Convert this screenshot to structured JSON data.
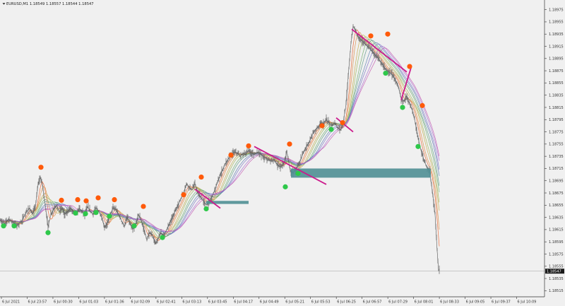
{
  "chart_data": {
    "type": "line",
    "title": "EURUSD,M1  1.18549 1.18557 1.18544 1.18547",
    "symbol_label": "EURUSD,M1",
    "ohlc": "1.18549 1.18557 1.18544 1.18547",
    "current_price": 1.18547,
    "current_price_label": "1.18547",
    "ylim": [
      1.18505,
      1.18985
    ],
    "y_ticks": [
      1.18975,
      1.18955,
      1.18935,
      1.18915,
      1.18895,
      1.18875,
      1.18855,
      1.18835,
      1.18815,
      1.18795,
      1.18775,
      1.18755,
      1.18735,
      1.18715,
      1.18695,
      1.18675,
      1.18655,
      1.18635,
      1.18615,
      1.18595,
      1.18575,
      1.18555,
      1.18535,
      1.18515
    ],
    "x_ticks": [
      "6 Jul 2021",
      "6 Jul 23:57",
      "6 Jul 00:30",
      "6 Jul 01:03",
      "6 Jul 01:36",
      "6 Jul 02:09",
      "6 Jul 02:41",
      "6 Jul 03:13",
      "6 Jul 03:45",
      "6 Jul 04:17",
      "6 Jul 04:49",
      "6 Jul 05:21",
      "6 Jul 05:53",
      "6 Jul 06:25",
      "6 Jul 06:57",
      "6 Jul 07:29",
      "6 Jul 08:01",
      "6 Jul 08:33",
      "6 Jul 09:05",
      "6 Jul 09:37",
      "6 Jul 10:09"
    ],
    "price_path": [
      [
        0,
        1.1863
      ],
      [
        7,
        1.18625
      ],
      [
        12,
        1.18632
      ],
      [
        18,
        1.18628
      ],
      [
        24,
        1.18622
      ],
      [
        30,
        1.18628
      ],
      [
        35,
        1.18638
      ],
      [
        38,
        1.18645
      ],
      [
        42,
        1.1865
      ],
      [
        46,
        1.1864
      ],
      [
        50,
        1.18652
      ],
      [
        54,
        1.1869
      ],
      [
        57,
        1.187
      ],
      [
        60,
        1.1869
      ],
      [
        64,
        1.18655
      ],
      [
        68,
        1.1862
      ],
      [
        72,
        1.1864
      ],
      [
        76,
        1.18648
      ],
      [
        80,
        1.18655
      ],
      [
        84,
        1.18645
      ],
      [
        88,
        1.1865
      ],
      [
        92,
        1.1864
      ],
      [
        96,
        1.18645
      ],
      [
        100,
        1.1865
      ],
      [
        104,
        1.18645
      ],
      [
        108,
        1.1864
      ],
      [
        112,
        1.1865
      ],
      [
        116,
        1.18645
      ],
      [
        120,
        1.1864
      ],
      [
        124,
        1.18652
      ],
      [
        128,
        1.18645
      ],
      [
        132,
        1.1864
      ],
      [
        136,
        1.1865
      ],
      [
        140,
        1.18645
      ],
      [
        144,
        1.18635
      ],
      [
        148,
        1.18618
      ],
      [
        152,
        1.18625
      ],
      [
        156,
        1.1864
      ],
      [
        160,
        1.1865
      ],
      [
        164,
        1.18648
      ],
      [
        168,
        1.1864
      ],
      [
        172,
        1.1863
      ],
      [
        176,
        1.1862
      ],
      [
        180,
        1.18635
      ],
      [
        184,
        1.18625
      ],
      [
        188,
        1.18615
      ],
      [
        192,
        1.18622
      ],
      [
        196,
        1.1864
      ],
      [
        200,
        1.1863
      ],
      [
        204,
        1.18615
      ],
      [
        208,
        1.18598
      ],
      [
        212,
        1.1861
      ],
      [
        216,
        1.18605
      ],
      [
        220,
        1.18592
      ],
      [
        224,
        1.186
      ],
      [
        228,
        1.1861
      ],
      [
        232,
        1.18605
      ],
      [
        236,
        1.18615
      ],
      [
        240,
        1.18625
      ],
      [
        244,
        1.18635
      ],
      [
        248,
        1.18645
      ],
      [
        252,
        1.18655
      ],
      [
        256,
        1.18665
      ],
      [
        260,
        1.18675
      ],
      [
        264,
        1.1869
      ],
      [
        268,
        1.18685
      ],
      [
        272,
        1.1868
      ],
      [
        276,
        1.1869
      ],
      [
        280,
        1.18675
      ],
      [
        284,
        1.18668
      ],
      [
        288,
        1.18662
      ],
      [
        292,
        1.18655
      ],
      [
        296,
        1.1866
      ],
      [
        300,
        1.18668
      ],
      [
        304,
        1.1868
      ],
      [
        308,
        1.18692
      ],
      [
        312,
        1.18705
      ],
      [
        316,
        1.18715
      ],
      [
        320,
        1.18725
      ],
      [
        324,
        1.18732
      ],
      [
        328,
        1.18738
      ],
      [
        332,
        1.18742
      ],
      [
        336,
        1.1874
      ],
      [
        340,
        1.18735
      ],
      [
        344,
        1.1874
      ],
      [
        348,
        1.18738
      ],
      [
        352,
        1.18745
      ],
      [
        356,
        1.1874
      ],
      [
        360,
        1.18738
      ],
      [
        364,
        1.18742
      ],
      [
        368,
        1.1874
      ],
      [
        372,
        1.18735
      ],
      [
        376,
        1.18732
      ],
      [
        380,
        1.1873
      ],
      [
        384,
        1.18728
      ],
      [
        388,
        1.1873
      ],
      [
        392,
        1.18722
      ],
      [
        396,
        1.18718
      ],
      [
        400,
        1.1872
      ],
      [
        404,
        1.18728
      ],
      [
        406,
        1.18745
      ],
      [
        408,
        1.1873
      ],
      [
        411,
        1.18712
      ],
      [
        414,
        1.18708
      ],
      [
        418,
        1.18712
      ],
      [
        422,
        1.1872
      ],
      [
        426,
        1.1873
      ],
      [
        430,
        1.18742
      ],
      [
        434,
        1.18752
      ],
      [
        438,
        1.18758
      ],
      [
        442,
        1.1877
      ],
      [
        446,
        1.18778
      ],
      [
        450,
        1.18782
      ],
      [
        454,
        1.1879
      ],
      [
        458,
        1.18788
      ],
      [
        462,
        1.18795
      ],
      [
        466,
        1.1879
      ],
      [
        470,
        1.18785
      ],
      [
        474,
        1.1879
      ],
      [
        478,
        1.18782
      ],
      [
        482,
        1.18778
      ],
      [
        486,
        1.1879
      ],
      [
        490,
        1.1882
      ],
      [
        494,
        1.1888
      ],
      [
        497,
        1.1892
      ],
      [
        500,
        1.18948
      ],
      [
        504,
        1.1894
      ],
      [
        508,
        1.1893
      ],
      [
        512,
        1.18925
      ],
      [
        516,
        1.1892
      ],
      [
        520,
        1.18915
      ],
      [
        524,
        1.18912
      ],
      [
        528,
        1.18905
      ],
      [
        532,
        1.189
      ],
      [
        536,
        1.18895
      ],
      [
        540,
        1.18888
      ],
      [
        544,
        1.1888
      ],
      [
        548,
        1.18875
      ],
      [
        552,
        1.18872
      ],
      [
        556,
        1.18868
      ],
      [
        560,
        1.1886
      ],
      [
        564,
        1.1885
      ],
      [
        568,
        1.1883
      ],
      [
        572,
        1.18825
      ],
      [
        576,
        1.18835
      ],
      [
        580,
        1.1882
      ],
      [
        584,
        1.1881
      ],
      [
        588,
        1.1879
      ],
      [
        592,
        1.18765
      ],
      [
        596,
        1.18745
      ],
      [
        600,
        1.1873
      ],
      [
        604,
        1.18718
      ],
      [
        608,
        1.18712
      ],
      [
        612,
        1.1868
      ],
      [
        616,
        1.1864
      ],
      [
        619,
        1.1858
      ],
      [
        621,
        1.18548
      ],
      [
        622,
        1.18547
      ]
    ],
    "high_markers": [
      [
        58,
        1.18717
      ],
      [
        87,
        1.18663
      ],
      [
        110,
        1.18664
      ],
      [
        122,
        1.18662
      ],
      [
        139,
        1.18667
      ],
      [
        162,
        1.18664
      ],
      [
        203,
        1.18653
      ],
      [
        260,
        1.18672
      ],
      [
        285,
        1.18701
      ],
      [
        327,
        1.18737
      ],
      [
        352,
        1.18752
      ],
      [
        410,
        1.18755
      ],
      [
        456,
        1.18785
      ],
      [
        485,
        1.1879
      ],
      [
        525,
        1.18932
      ],
      [
        549,
        1.18935
      ],
      [
        580,
        1.18882
      ],
      [
        598,
        1.18818
      ]
    ],
    "low_markers": [
      [
        5,
        1.18621
      ],
      [
        20,
        1.18621
      ],
      [
        68,
        1.1861
      ],
      [
        107,
        1.18642
      ],
      [
        121,
        1.18641
      ],
      [
        136,
        1.18643
      ],
      [
        155,
        1.18637
      ],
      [
        190,
        1.18621
      ],
      [
        230,
        1.18602
      ],
      [
        292,
        1.18649
      ],
      [
        404,
        1.18685
      ],
      [
        422,
        1.18707
      ],
      [
        469,
        1.18779
      ],
      [
        546,
        1.18871
      ],
      [
        570,
        1.18815
      ],
      [
        592,
        1.18751
      ]
    ],
    "trend_lines": [
      [
        [
          276,
          1.18681
        ],
        [
          312,
          1.1865
        ]
      ],
      [
        [
          360,
          1.18751
        ],
        [
          462,
          1.18689
        ]
      ],
      [
        [
          498,
          1.18943
        ],
        [
          576,
          1.18873
        ]
      ],
      [
        [
          476,
          1.18798
        ],
        [
          500,
          1.18775
        ]
      ],
      [
        [
          568,
          1.18827
        ],
        [
          582,
          1.1888
        ]
      ]
    ],
    "zones": [
      {
        "x0": 292,
        "x1": 352,
        "y_top": 1.18662,
        "y_bottom": 1.18657
      },
      {
        "x0": 412,
        "x1": 610,
        "y_top": 1.18715,
        "y_bottom": 1.187
      }
    ],
    "colors": {
      "price": "#6e6e6e",
      "high_marker": "#ff5a0a",
      "low_marker": "#2ec84a",
      "trend_line": "#cc1a8c",
      "zone": "#4f8f93",
      "ribbon": [
        "#e8602c",
        "#d98c3f",
        "#c7a84a",
        "#9bb85a",
        "#6fae6c",
        "#5d9a8a",
        "#5c7fb0",
        "#7a6fc8",
        "#a66ad0",
        "#c45ab0"
      ],
      "grid": "#d9d9d9",
      "bid_line": "#b0b0b0"
    },
    "grid": false
  }
}
